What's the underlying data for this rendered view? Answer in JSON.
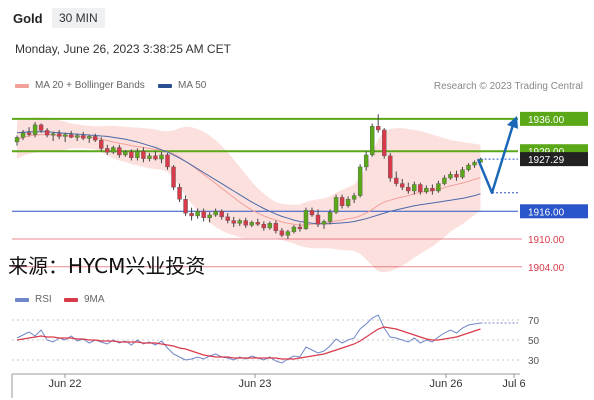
{
  "header": {
    "instrument": "Gold",
    "timeframe": "30 MIN",
    "datetime": "Monday, June 26, 2023 3:38:25 AM CET",
    "source_watermark": "来源：HYCM兴业投资"
  },
  "legend": {
    "ma20": "MA 20 + Bollinger Bands",
    "ma50": "MA 50",
    "credit": "Research © 2023 Trading Central",
    "rsi": "RSI",
    "ma9": "9MA"
  },
  "colors": {
    "resistance": "#5aa817",
    "support": "#2a54c9",
    "level_red": "#d93a4a",
    "candle_up": "#5aa817",
    "candle_down": "#d93a4a",
    "bollinger_fill": "#fbd5d3",
    "ma20": "#f2a09a",
    "ma50": "#4a6aa8",
    "arrow": "#1a67b8"
  },
  "chart_data": {
    "type": "candlestick",
    "instrument": "Gold",
    "timeframe": "30 MIN",
    "ylim": [
      1902,
      1939
    ],
    "x_tick_labels": [
      "Jun 22",
      "Jun 23",
      "Jun 26",
      "Jul 6"
    ],
    "current_price": "1927.29",
    "levels": [
      {
        "price": 1936.0,
        "label": "1936.00",
        "kind": "resistance"
      },
      {
        "price": 1929.0,
        "label": "1929.00",
        "kind": "resistance"
      },
      {
        "price": 1916.0,
        "label": "1916.00",
        "kind": "support"
      },
      {
        "price": 1910.0,
        "label": "1910.00",
        "kind": "red"
      },
      {
        "price": 1904.0,
        "label": "1904.00",
        "kind": "red"
      }
    ],
    "candles": [
      [
        1931.0,
        1932.4,
        1930.2,
        1932.0
      ],
      [
        1932.0,
        1933.6,
        1931.4,
        1933.0
      ],
      [
        1933.0,
        1934.2,
        1932.2,
        1932.6
      ],
      [
        1932.6,
        1935.3,
        1932.0,
        1934.7
      ],
      [
        1934.7,
        1935.0,
        1933.0,
        1933.5
      ],
      [
        1933.5,
        1934.0,
        1932.0,
        1932.5
      ],
      [
        1932.5,
        1933.2,
        1931.2,
        1932.8
      ],
      [
        1932.8,
        1933.6,
        1931.6,
        1932.2
      ],
      [
        1932.2,
        1933.0,
        1931.0,
        1932.6
      ],
      [
        1932.6,
        1933.4,
        1931.8,
        1932.0
      ],
      [
        1932.0,
        1932.8,
        1931.2,
        1932.4
      ],
      [
        1932.4,
        1933.2,
        1931.4,
        1931.8
      ],
      [
        1931.8,
        1932.6,
        1930.8,
        1932.2
      ],
      [
        1932.2,
        1932.8,
        1931.0,
        1931.4
      ],
      [
        1931.4,
        1932.0,
        1929.0,
        1929.6
      ],
      [
        1929.6,
        1930.4,
        1928.2,
        1928.8
      ],
      [
        1928.8,
        1930.2,
        1928.4,
        1929.8
      ],
      [
        1929.8,
        1930.4,
        1927.6,
        1928.2
      ],
      [
        1928.2,
        1929.2,
        1927.8,
        1928.9
      ],
      [
        1928.9,
        1929.4,
        1927.0,
        1927.6
      ],
      [
        1927.6,
        1929.6,
        1927.0,
        1929.0
      ],
      [
        1929.0,
        1929.8,
        1926.6,
        1927.4
      ],
      [
        1927.4,
        1928.6,
        1926.8,
        1928.0
      ],
      [
        1928.0,
        1929.0,
        1927.0,
        1927.3
      ],
      [
        1927.3,
        1928.8,
        1926.4,
        1928.2
      ],
      [
        1928.2,
        1928.6,
        1925.0,
        1925.6
      ],
      [
        1925.6,
        1926.0,
        1920.6,
        1921.2
      ],
      [
        1921.2,
        1922.0,
        1918.0,
        1918.6
      ],
      [
        1918.6,
        1919.4,
        1915.0,
        1915.6
      ],
      [
        1915.6,
        1916.8,
        1914.0,
        1915.0
      ],
      [
        1915.0,
        1916.6,
        1914.4,
        1916.0
      ],
      [
        1916.0,
        1916.6,
        1913.8,
        1914.6
      ],
      [
        1914.6,
        1915.8,
        1913.6,
        1915.2
      ],
      [
        1915.2,
        1916.6,
        1914.8,
        1916.0
      ],
      [
        1916.0,
        1916.4,
        1914.2,
        1914.8
      ],
      [
        1914.8,
        1915.6,
        1913.4,
        1914.0
      ],
      [
        1914.0,
        1914.8,
        1912.6,
        1913.4
      ],
      [
        1913.4,
        1914.4,
        1912.8,
        1914.0
      ],
      [
        1914.0,
        1914.6,
        1912.4,
        1913.0
      ],
      [
        1913.0,
        1914.0,
        1912.6,
        1913.6
      ],
      [
        1913.6,
        1914.4,
        1912.8,
        1913.2
      ],
      [
        1913.2,
        1913.8,
        1911.8,
        1912.4
      ],
      [
        1912.4,
        1913.8,
        1912.0,
        1913.4
      ],
      [
        1913.4,
        1914.0,
        1911.2,
        1911.8
      ],
      [
        1911.8,
        1912.4,
        1910.4,
        1910.8
      ],
      [
        1910.8,
        1912.0,
        1910.0,
        1911.6
      ],
      [
        1911.6,
        1913.0,
        1911.2,
        1912.6
      ],
      [
        1912.6,
        1913.4,
        1911.6,
        1912.2
      ],
      [
        1912.2,
        1916.8,
        1912.0,
        1916.2
      ],
      [
        1916.2,
        1916.8,
        1914.8,
        1915.2
      ],
      [
        1915.2,
        1916.4,
        1912.6,
        1913.2
      ],
      [
        1913.2,
        1914.2,
        1912.2,
        1913.8
      ],
      [
        1913.8,
        1916.4,
        1913.2,
        1915.8
      ],
      [
        1915.8,
        1919.6,
        1915.4,
        1919.0
      ],
      [
        1919.0,
        1919.6,
        1916.6,
        1917.2
      ],
      [
        1917.2,
        1919.2,
        1916.8,
        1918.6
      ],
      [
        1918.6,
        1920.0,
        1917.8,
        1919.4
      ],
      [
        1919.4,
        1926.2,
        1919.0,
        1925.6
      ],
      [
        1925.6,
        1929.0,
        1924.8,
        1928.2
      ],
      [
        1928.2,
        1935.0,
        1927.8,
        1934.4
      ],
      [
        1934.4,
        1937.0,
        1933.0,
        1933.6
      ],
      [
        1933.6,
        1934.0,
        1927.4,
        1928.0
      ],
      [
        1928.0,
        1928.6,
        1922.4,
        1923.2
      ],
      [
        1923.2,
        1924.6,
        1921.4,
        1922.0
      ],
      [
        1922.0,
        1923.0,
        1920.6,
        1921.2
      ],
      [
        1921.2,
        1922.2,
        1919.8,
        1920.4
      ],
      [
        1920.4,
        1922.4,
        1919.6,
        1921.8
      ],
      [
        1921.8,
        1922.2,
        1919.6,
        1920.2
      ],
      [
        1920.2,
        1921.6,
        1919.8,
        1921.0
      ],
      [
        1921.0,
        1921.8,
        1919.6,
        1920.4
      ],
      [
        1920.4,
        1922.6,
        1920.0,
        1922.0
      ],
      [
        1922.0,
        1923.8,
        1921.6,
        1923.2
      ],
      [
        1923.2,
        1924.6,
        1922.8,
        1924.0
      ],
      [
        1924.0,
        1924.8,
        1922.6,
        1923.4
      ],
      [
        1923.4,
        1925.6,
        1923.0,
        1925.0
      ],
      [
        1925.0,
        1926.4,
        1924.6,
        1926.0
      ],
      [
        1926.0,
        1927.0,
        1925.4,
        1926.6
      ],
      [
        1926.6,
        1927.6,
        1926.2,
        1927.3
      ]
    ],
    "ma20": [
      1931.5,
      1932.0,
      1932.3,
      1932.5,
      1932.6,
      1932.6,
      1932.5,
      1932.4,
      1932.3,
      1932.3,
      1932.2,
      1932.1,
      1932.0,
      1931.9,
      1931.6,
      1931.3,
      1931.0,
      1930.7,
      1930.5,
      1930.2,
      1930.0,
      1929.8,
      1929.6,
      1929.4,
      1929.2,
      1928.9,
      1928.4,
      1927.7,
      1926.8,
      1925.9,
      1925.0,
      1924.0,
      1923.0,
      1922.0,
      1921.0,
      1920.0,
      1919.0,
      1918.0,
      1917.1,
      1916.3,
      1915.6,
      1915.0,
      1914.5,
      1914.1,
      1913.7,
      1913.4,
      1913.2,
      1913.0,
      1913.1,
      1913.2,
      1913.3,
      1913.4,
      1913.6,
      1913.9,
      1914.1,
      1914.4,
      1914.6,
      1915.0,
      1915.6,
      1916.4,
      1917.3,
      1918.0,
      1918.4,
      1918.8,
      1919.1,
      1919.4,
      1919.8,
      1920.1,
      1920.3,
      1920.5,
      1920.8,
      1921.1,
      1921.5,
      1921.8,
      1922.1,
      1922.5,
      1922.9,
      1923.3
    ],
    "bollinger_upper": [
      1935.6,
      1936.0,
      1936.2,
      1936.3,
      1936.3,
      1936.2,
      1936.0,
      1935.7,
      1935.4,
      1935.0,
      1934.8,
      1934.6,
      1934.5,
      1934.4,
      1934.4,
      1934.5,
      1934.5,
      1934.4,
      1934.3,
      1934.2,
      1934.1,
      1934.0,
      1933.9,
      1933.7,
      1933.4,
      1933.3,
      1933.5,
      1934.0,
      1934.3,
      1934.2,
      1933.8,
      1933.2,
      1932.4,
      1931.4,
      1930.2,
      1928.8,
      1927.2,
      1925.6,
      1924.0,
      1922.4,
      1921.0,
      1919.8,
      1918.8,
      1918.0,
      1917.6,
      1917.4,
      1917.4,
      1917.5,
      1918.0,
      1918.4,
      1918.6,
      1918.8,
      1919.2,
      1920.0,
      1920.6,
      1921.2,
      1921.8,
      1923.2,
      1925.6,
      1928.6,
      1931.6,
      1933.2,
      1933.8,
      1934.0,
      1934.0,
      1933.8,
      1933.6,
      1933.4,
      1933.0,
      1932.6,
      1932.2,
      1931.8,
      1931.4,
      1931.2,
      1931.0,
      1930.8,
      1930.6,
      1930.4
    ],
    "bollinger_lower": [
      1927.4,
      1928.0,
      1928.4,
      1928.7,
      1928.9,
      1929.0,
      1929.0,
      1929.1,
      1929.2,
      1929.6,
      1929.6,
      1929.6,
      1929.5,
      1929.4,
      1928.8,
      1928.1,
      1927.5,
      1927.0,
      1926.7,
      1926.2,
      1925.9,
      1925.6,
      1925.3,
      1925.1,
      1925.0,
      1924.5,
      1923.3,
      1921.4,
      1919.3,
      1917.6,
      1916.2,
      1914.8,
      1913.6,
      1912.6,
      1911.8,
      1911.2,
      1910.8,
      1910.4,
      1910.2,
      1910.2,
      1910.2,
      1910.2,
      1910.2,
      1910.2,
      1909.8,
      1909.4,
      1909.0,
      1908.5,
      1908.2,
      1908.0,
      1908.0,
      1908.0,
      1908.0,
      1907.8,
      1907.6,
      1907.6,
      1907.4,
      1906.8,
      1905.6,
      1904.2,
      1903.0,
      1902.8,
      1903.0,
      1903.6,
      1904.2,
      1905.0,
      1906.0,
      1906.8,
      1907.6,
      1908.4,
      1909.4,
      1910.4,
      1911.6,
      1912.4,
      1913.2,
      1914.2,
      1915.2,
      1916.2
    ],
    "ma50": [
      1933.0,
      1933.1,
      1933.2,
      1933.2,
      1933.2,
      1933.2,
      1933.1,
      1933.0,
      1932.9,
      1932.8,
      1932.7,
      1932.6,
      1932.5,
      1932.4,
      1932.3,
      1932.2,
      1932.0,
      1931.8,
      1931.6,
      1931.3,
      1931.0,
      1930.6,
      1930.2,
      1929.8,
      1929.3,
      1928.8,
      1928.2,
      1927.5,
      1926.8,
      1926.0,
      1925.2,
      1924.4,
      1923.6,
      1922.8,
      1922.0,
      1921.2,
      1920.4,
      1919.6,
      1918.8,
      1918.0,
      1917.3,
      1916.6,
      1916.0,
      1915.4,
      1914.9,
      1914.5,
      1914.1,
      1913.8,
      1913.6,
      1913.4,
      1913.3,
      1913.3,
      1913.3,
      1913.4,
      1913.5,
      1913.6,
      1913.8,
      1914.1,
      1914.4,
      1914.8,
      1915.2,
      1915.6,
      1916.0,
      1916.3,
      1916.6,
      1916.9,
      1917.2,
      1917.4,
      1917.6,
      1917.8,
      1918.0,
      1918.2,
      1918.4,
      1918.6,
      1918.8,
      1919.1,
      1919.4,
      1919.8
    ],
    "rsi": {
      "ticks": [
        "70",
        "50",
        "30"
      ],
      "ylim": [
        20,
        80
      ],
      "rsi": [
        52,
        55,
        58,
        54,
        60,
        50,
        48,
        52,
        50,
        54,
        49,
        51,
        47,
        50,
        48,
        46,
        50,
        47,
        49,
        45,
        50,
        46,
        48,
        45,
        49,
        42,
        36,
        33,
        30,
        31,
        33,
        31,
        34,
        36,
        33,
        32,
        30,
        33,
        31,
        34,
        32,
        30,
        33,
        29,
        27,
        31,
        34,
        33,
        43,
        40,
        37,
        39,
        44,
        51,
        47,
        50,
        52,
        61,
        66,
        72,
        75,
        62,
        53,
        52,
        50,
        48,
        52,
        47,
        50,
        48,
        53,
        57,
        60,
        57,
        62,
        65,
        66,
        67
      ],
      "ma9": [
        50,
        51,
        52,
        53,
        54,
        53,
        53,
        52,
        52,
        52,
        51,
        51,
        50,
        50,
        49,
        49,
        49,
        48,
        48,
        48,
        48,
        47,
        47,
        47,
        46,
        45,
        44,
        42,
        41,
        39,
        37,
        35,
        34,
        33,
        33,
        33,
        32,
        32,
        32,
        32,
        32,
        32,
        32,
        32,
        31,
        31,
        31,
        32,
        33,
        34,
        35,
        36,
        38,
        40,
        42,
        44,
        46,
        49,
        53,
        57,
        61,
        63,
        62,
        61,
        59,
        57,
        55,
        53,
        51,
        50,
        50,
        51,
        52,
        53,
        55,
        57,
        59,
        61
      ]
    },
    "scenario_projection": {
      "from": 1927.29,
      "pullback": 1920.0,
      "target": 1936.0
    }
  }
}
